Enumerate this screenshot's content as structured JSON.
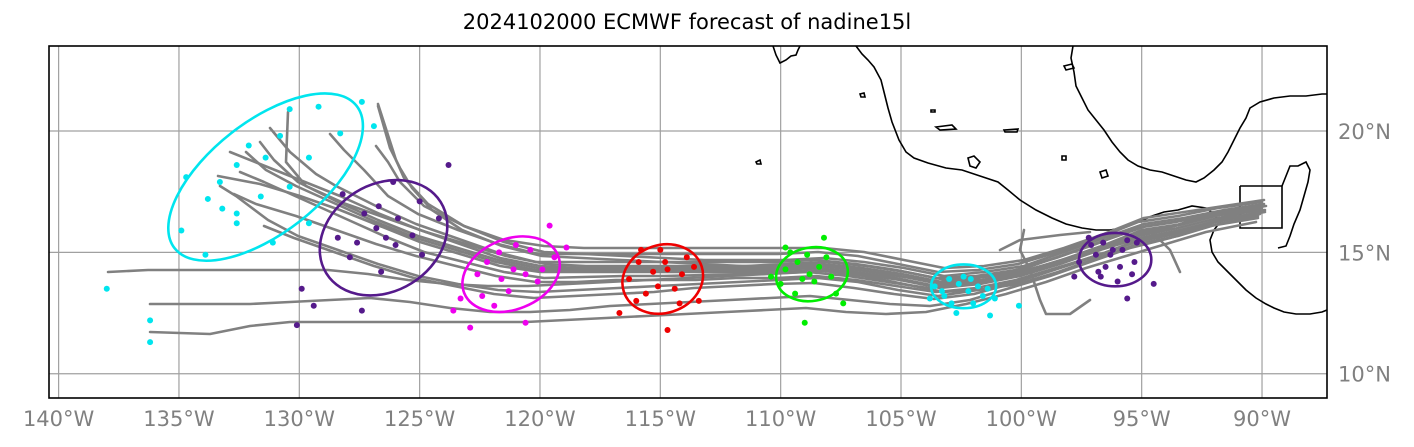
{
  "title": "2024102000 ECMWF forecast of nadine15l",
  "lon_ticks": [
    {
      "lon": -140,
      "label": "140°W"
    },
    {
      "lon": -135,
      "label": "135°W"
    },
    {
      "lon": -130,
      "label": "130°W"
    },
    {
      "lon": -125,
      "label": "125°W"
    },
    {
      "lon": -120,
      "label": "120°W"
    },
    {
      "lon": -115,
      "label": "115°W"
    },
    {
      "lon": -110,
      "label": "110°W"
    },
    {
      "lon": -105,
      "label": "105°W"
    },
    {
      "lon": -100,
      "label": "100°W"
    },
    {
      "lon": -95,
      "label": "95°W"
    },
    {
      "lon": -90,
      "label": "90°W"
    }
  ],
  "lat_ticks": [
    {
      "lat": 20,
      "label": "20°N"
    },
    {
      "lat": 15,
      "label": "15°N"
    },
    {
      "lat": 10,
      "label": "10°N"
    }
  ],
  "colors": {
    "track": "#808080",
    "grid": "#a0a0a0",
    "coast": "#000000",
    "cyan": "#00e5ee",
    "purple": "#551a8b",
    "magenta": "#ee00ee",
    "red": "#ee0000",
    "green": "#00ee00"
  },
  "chart_data": {
    "type": "scatter",
    "extent": {
      "lon": [
        -140.4,
        -87.3
      ],
      "lat": [
        9.0,
        23.5
      ]
    },
    "grid": true,
    "ellipses": [
      {
        "color": "cyan",
        "lon": -97.6,
        "lat": 16.6,
        "width": 0,
        "height": 0,
        "angle": 0
      },
      {
        "color": "purple",
        "lon": -96.1,
        "lat": 14.7,
        "width": 3.0,
        "height": 2.2,
        "angle": 0
      },
      {
        "color": "cyan",
        "lon": -102.4,
        "lat": 13.6,
        "width": 2.7,
        "height": 1.8,
        "angle": 0
      },
      {
        "color": "green",
        "lon": -108.7,
        "lat": 14.1,
        "width": 3.0,
        "height": 2.2,
        "angle": 10
      },
      {
        "color": "red",
        "lon": -114.9,
        "lat": 13.9,
        "width": 3.4,
        "height": 2.8,
        "angle": 18
      },
      {
        "color": "magenta",
        "lon": -121.2,
        "lat": 14.1,
        "width": 4.2,
        "height": 2.9,
        "angle": 22
      },
      {
        "color": "purple",
        "lon": -126.5,
        "lat": 15.6,
        "width": 5.6,
        "height": 4.4,
        "angle": 32
      },
      {
        "color": "cyan",
        "lon": -131.4,
        "lat": 18.1,
        "width": 9.6,
        "height": 4.6,
        "angle": 38
      }
    ],
    "point_groups": [
      {
        "color": "purple",
        "points": [
          [
            -97.1,
            15.3
          ],
          [
            -96.8,
            14.2
          ],
          [
            -96.3,
            14.9
          ],
          [
            -95.8,
            15.1
          ],
          [
            -95.9,
            14.4
          ],
          [
            -95.3,
            14.6
          ],
          [
            -95.6,
            15.5
          ],
          [
            -96.9,
            14.9
          ],
          [
            -97.2,
            15.6
          ],
          [
            -96.5,
            14.4
          ],
          [
            -96.0,
            13.8
          ],
          [
            -95.4,
            14.1
          ],
          [
            -96.6,
            15.4
          ],
          [
            -97.6,
            14.6
          ],
          [
            -95.6,
            13.1
          ],
          [
            -94.5,
            13.7
          ],
          [
            -97.8,
            14.0
          ],
          [
            -95.2,
            15.4
          ],
          [
            -96.2,
            15.1
          ],
          [
            -96.7,
            14.0
          ]
        ]
      },
      {
        "color": "cyan",
        "points": [
          [
            -102.6,
            13.7
          ],
          [
            -102.2,
            13.4
          ],
          [
            -103.0,
            13.9
          ],
          [
            -101.8,
            13.6
          ],
          [
            -102.4,
            14.0
          ],
          [
            -103.3,
            13.4
          ],
          [
            -101.6,
            13.2
          ],
          [
            -102.9,
            12.9
          ],
          [
            -101.3,
            12.4
          ],
          [
            -103.6,
            13.6
          ],
          [
            -102.1,
            13.9
          ],
          [
            -100.1,
            12.8
          ],
          [
            -101.1,
            13.1
          ],
          [
            -102.7,
            12.5
          ],
          [
            -103.8,
            13.1
          ],
          [
            -102.0,
            12.9
          ],
          [
            -101.4,
            13.5
          ],
          [
            -103.2,
            13.2
          ]
        ]
      },
      {
        "color": "green",
        "points": [
          [
            -109.8,
            14.3
          ],
          [
            -109.3,
            14.6
          ],
          [
            -108.8,
            14.1
          ],
          [
            -108.4,
            14.4
          ],
          [
            -108.1,
            14.8
          ],
          [
            -109.1,
            13.9
          ],
          [
            -108.6,
            13.8
          ],
          [
            -110.0,
            13.7
          ],
          [
            -107.9,
            14.0
          ],
          [
            -109.6,
            15.0
          ],
          [
            -108.2,
            15.6
          ],
          [
            -109.0,
            12.1
          ],
          [
            -107.4,
            12.9
          ],
          [
            -109.8,
            15.2
          ],
          [
            -107.7,
            13.3
          ],
          [
            -110.4,
            14.0
          ],
          [
            -108.9,
            14.9
          ],
          [
            -109.4,
            13.3
          ]
        ]
      },
      {
        "color": "red",
        "points": [
          [
            -115.9,
            14.6
          ],
          [
            -115.3,
            14.2
          ],
          [
            -114.7,
            14.3
          ],
          [
            -114.1,
            14.1
          ],
          [
            -115.1,
            13.6
          ],
          [
            -115.6,
            13.3
          ],
          [
            -114.4,
            13.5
          ],
          [
            -116.3,
            13.9
          ],
          [
            -113.9,
            14.8
          ],
          [
            -115.0,
            15.1
          ],
          [
            -116.7,
            12.5
          ],
          [
            -114.7,
            11.8
          ],
          [
            -113.4,
            13.0
          ],
          [
            -116.0,
            13.0
          ],
          [
            -114.8,
            14.6
          ],
          [
            -113.6,
            14.4
          ],
          [
            -115.8,
            15.1
          ],
          [
            -114.2,
            12.9
          ]
        ]
      },
      {
        "color": "magenta",
        "points": [
          [
            -122.6,
            14.1
          ],
          [
            -122.2,
            14.6
          ],
          [
            -121.6,
            13.9
          ],
          [
            -121.1,
            14.3
          ],
          [
            -120.6,
            14.1
          ],
          [
            -121.7,
            15.0
          ],
          [
            -120.4,
            15.1
          ],
          [
            -122.4,
            13.2
          ],
          [
            -121.3,
            13.4
          ],
          [
            -120.1,
            13.8
          ],
          [
            -119.9,
            14.3
          ],
          [
            -123.3,
            13.1
          ],
          [
            -122.9,
            11.9
          ],
          [
            -120.6,
            12.1
          ],
          [
            -119.6,
            16.1
          ],
          [
            -121.0,
            15.3
          ],
          [
            -118.9,
            15.2
          ],
          [
            -123.6,
            12.6
          ],
          [
            -119.4,
            14.8
          ],
          [
            -121.9,
            12.8
          ]
        ]
      },
      {
        "color": "purple",
        "points": [
          [
            -127.3,
            16.6
          ],
          [
            -126.8,
            16.0
          ],
          [
            -126.4,
            15.6
          ],
          [
            -125.9,
            16.4
          ],
          [
            -125.3,
            15.7
          ],
          [
            -127.6,
            15.4
          ],
          [
            -126.7,
            16.9
          ],
          [
            -125.0,
            17.1
          ],
          [
            -124.2,
            16.4
          ],
          [
            -127.9,
            14.8
          ],
          [
            -126.6,
            14.2
          ],
          [
            -128.2,
            17.4
          ],
          [
            -126.1,
            17.9
          ],
          [
            -123.8,
            18.6
          ],
          [
            -124.9,
            14.9
          ],
          [
            -130.1,
            12.0
          ],
          [
            -129.4,
            12.8
          ],
          [
            -127.4,
            12.6
          ],
          [
            -129.9,
            13.5
          ],
          [
            -128.4,
            15.6
          ],
          [
            -126.0,
            15.3
          ]
        ]
      },
      {
        "color": "cyan",
        "points": [
          [
            -134.7,
            18.1
          ],
          [
            -133.8,
            17.2
          ],
          [
            -133.3,
            17.9
          ],
          [
            -132.6,
            18.6
          ],
          [
            -132.1,
            19.4
          ],
          [
            -131.4,
            18.9
          ],
          [
            -130.8,
            19.8
          ],
          [
            -130.4,
            20.9
          ],
          [
            -129.2,
            21.0
          ],
          [
            -128.3,
            19.9
          ],
          [
            -133.2,
            16.8
          ],
          [
            -132.6,
            16.2
          ],
          [
            -131.6,
            17.3
          ],
          [
            -130.4,
            17.7
          ],
          [
            -129.6,
            18.9
          ],
          [
            -127.4,
            21.2
          ],
          [
            -134.9,
            15.9
          ],
          [
            -133.9,
            14.9
          ],
          [
            -132.6,
            16.6
          ],
          [
            -131.1,
            15.4
          ],
          [
            -129.6,
            16.2
          ],
          [
            -126.9,
            20.2
          ],
          [
            -138.0,
            13.5
          ],
          [
            -136.2,
            12.2
          ],
          [
            -136.2,
            11.3
          ]
        ]
      }
    ]
  }
}
